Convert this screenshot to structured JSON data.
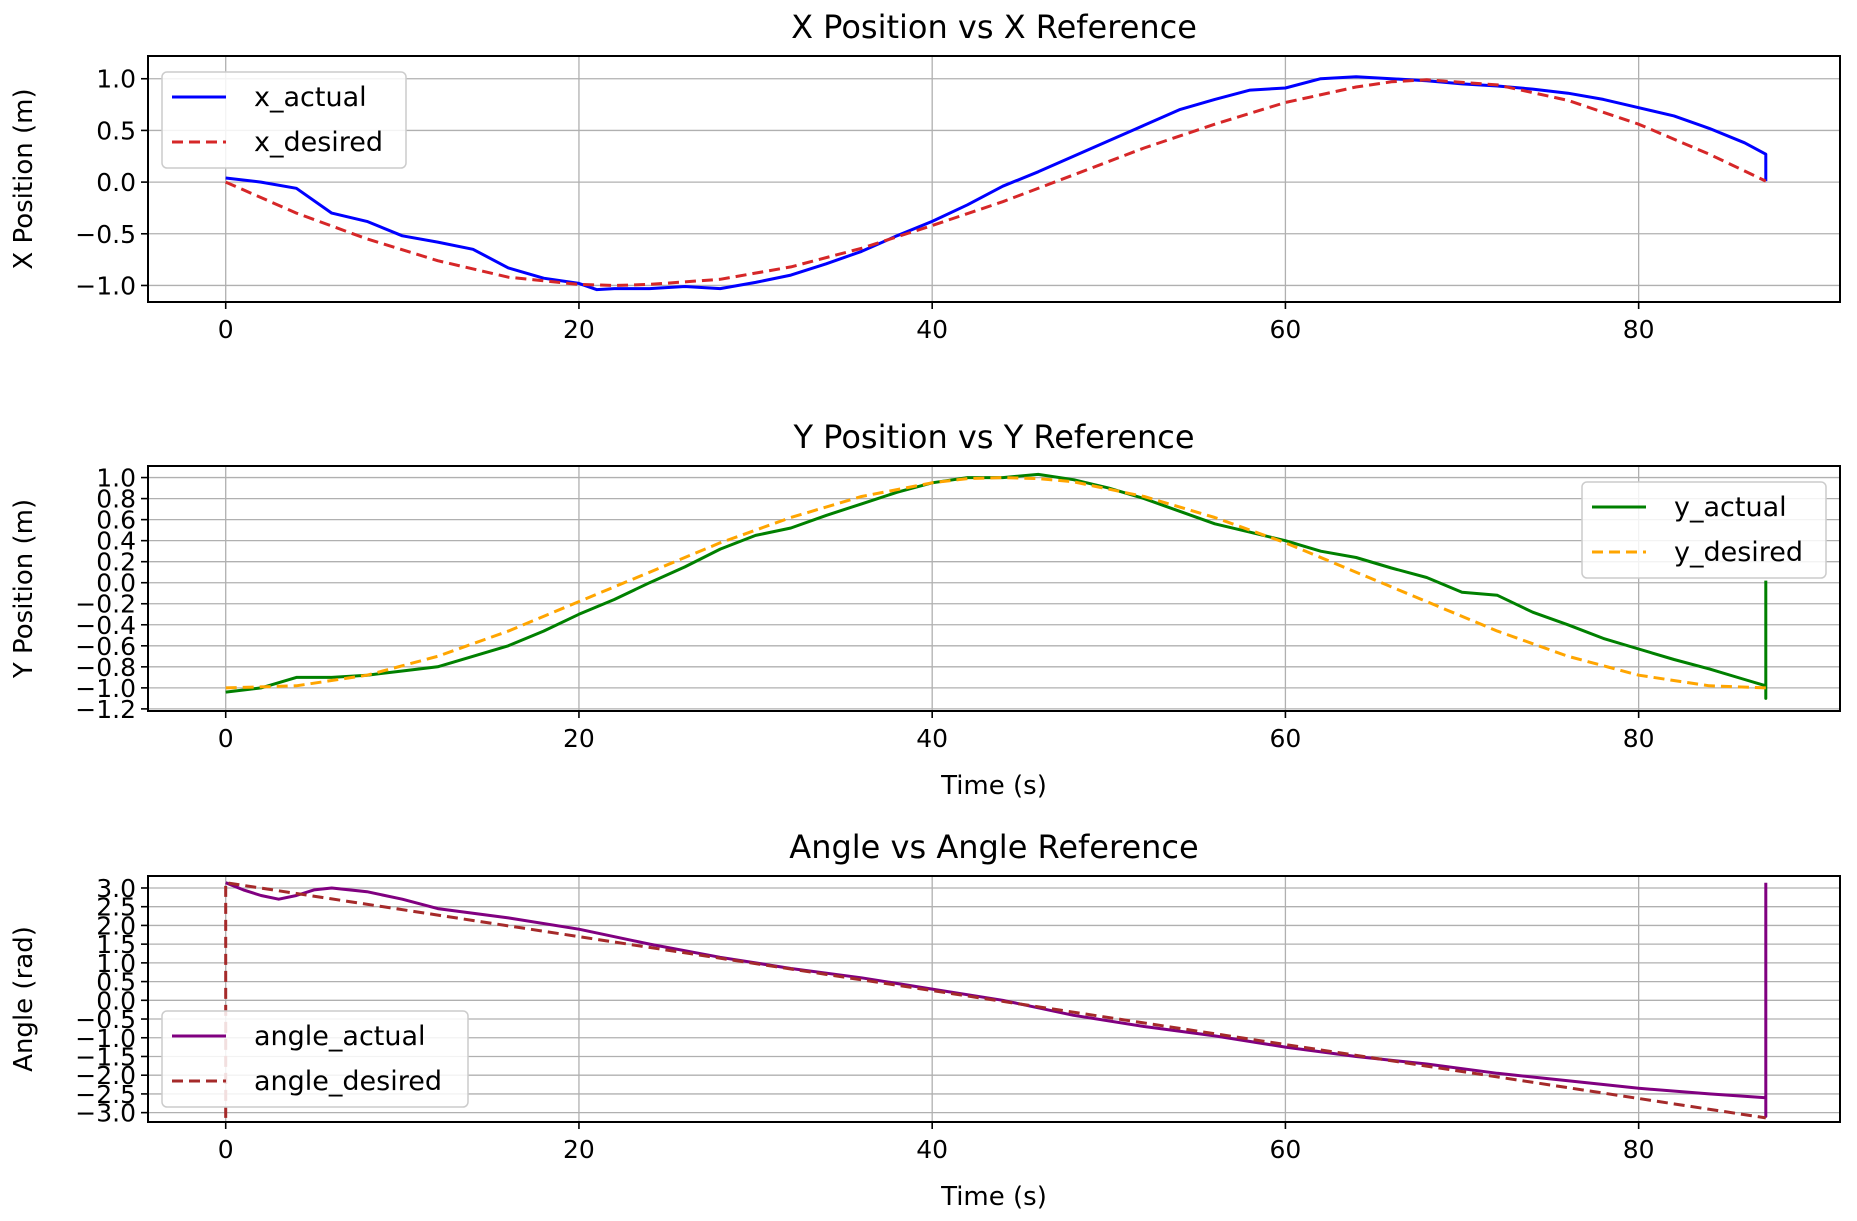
{
  "chart_data": [
    {
      "type": "line",
      "title": "X Position vs X Reference",
      "xlabel": "",
      "ylabel": "X Position (m)",
      "xlim": [
        -4.4,
        91.4
      ],
      "ylim": [
        -1.16,
        1.22
      ],
      "xticks": [
        0,
        20,
        40,
        60,
        80
      ],
      "yticks": [
        1.0,
        0.5,
        0.0,
        -0.5,
        -1.0
      ],
      "ytick_labels": [
        "1.0",
        "0.5",
        "0.0",
        "−0.5",
        "−1.0"
      ],
      "xtick_labels": [
        "0",
        "20",
        "40",
        "60",
        "80"
      ],
      "grid": true,
      "legend_position": "upper-left",
      "series": [
        {
          "name": "x_actual",
          "color": "#0000ff",
          "style": "solid",
          "x": [
            0,
            2,
            4,
            6,
            8,
            10,
            12,
            14,
            16,
            18,
            20,
            21,
            22,
            24,
            26,
            28,
            30,
            32,
            34,
            36,
            38,
            40,
            42,
            44,
            46,
            48,
            50,
            52,
            54,
            56,
            58,
            60,
            62,
            64,
            66,
            68,
            70,
            72,
            74,
            76,
            78,
            80,
            82,
            84,
            86,
            87.2,
            87.2
          ],
          "y": [
            0.04,
            0.0,
            -0.06,
            -0.3,
            -0.38,
            -0.52,
            -0.58,
            -0.65,
            -0.83,
            -0.93,
            -0.98,
            -1.04,
            -1.03,
            -1.03,
            -1.01,
            -1.03,
            -0.97,
            -0.9,
            -0.79,
            -0.67,
            -0.52,
            -0.38,
            -0.22,
            -0.04,
            0.1,
            0.25,
            0.4,
            0.55,
            0.7,
            0.8,
            0.89,
            0.91,
            1.0,
            1.02,
            1.0,
            0.98,
            0.95,
            0.93,
            0.9,
            0.86,
            0.8,
            0.72,
            0.64,
            0.52,
            0.38,
            0.27,
            0.01
          ]
        },
        {
          "name": "x_desired",
          "color": "#d62728",
          "style": "dashed",
          "x": [
            0,
            4,
            8,
            12,
            16,
            20,
            22,
            24,
            28,
            32,
            36,
            40,
            44,
            48,
            52,
            56,
            60,
            64,
            66,
            68,
            72,
            76,
            80,
            84,
            87.2
          ],
          "y": [
            0.0,
            -0.3,
            -0.55,
            -0.76,
            -0.92,
            -0.99,
            -1.0,
            -0.99,
            -0.94,
            -0.82,
            -0.64,
            -0.42,
            -0.19,
            0.07,
            0.33,
            0.56,
            0.77,
            0.92,
            0.97,
            0.99,
            0.94,
            0.79,
            0.56,
            0.27,
            0.01
          ]
        }
      ]
    },
    {
      "type": "line",
      "title": "Y Position vs Y Reference",
      "xlabel": "Time (s)",
      "ylabel": "Y Position (m)",
      "xlim": [
        -4.4,
        91.4
      ],
      "ylim": [
        -1.22,
        1.11
      ],
      "xticks": [
        0,
        20,
        40,
        60,
        80
      ],
      "yticks": [
        1.0,
        0.8,
        0.6,
        0.4,
        0.2,
        0.0,
        -0.2,
        -0.4,
        -0.6,
        -0.8,
        -1.0,
        -1.2
      ],
      "ytick_labels": [
        "1.0",
        "0.8",
        "0.6",
        "0.4",
        "0.2",
        "0.0",
        "−0.2",
        "−0.4",
        "−0.6",
        "−0.8",
        "−1.0",
        "−1.2"
      ],
      "xtick_labels": [
        "0",
        "20",
        "40",
        "60",
        "80"
      ],
      "grid": true,
      "legend_position": "upper-right",
      "series": [
        {
          "name": "y_actual",
          "color": "#008000",
          "style": "solid",
          "x": [
            0,
            2,
            4,
            6,
            8,
            10,
            12,
            14,
            16,
            18,
            20,
            22,
            24,
            26,
            28,
            30,
            32,
            34,
            36,
            38,
            40,
            42,
            44,
            46,
            48,
            50,
            52,
            54,
            56,
            58,
            60,
            62,
            64,
            66,
            68,
            70,
            72,
            74,
            76,
            78,
            80,
            82,
            84,
            86,
            87.2,
            87.2,
            87.2
          ],
          "y": [
            -1.04,
            -1.0,
            -0.9,
            -0.9,
            -0.88,
            -0.84,
            -0.8,
            -0.7,
            -0.6,
            -0.46,
            -0.3,
            -0.16,
            0.0,
            0.15,
            0.32,
            0.45,
            0.52,
            0.64,
            0.75,
            0.86,
            0.95,
            1.0,
            1.0,
            1.03,
            0.98,
            0.9,
            0.8,
            0.68,
            0.56,
            0.48,
            0.4,
            0.3,
            0.24,
            0.14,
            0.05,
            -0.09,
            -0.12,
            -0.28,
            -0.4,
            -0.53,
            -0.63,
            -0.73,
            -0.82,
            -0.92,
            -0.98,
            -1.1,
            0.02
          ]
        },
        {
          "name": "y_desired",
          "color": "#ffa500",
          "style": "dashed",
          "x": [
            0,
            4,
            8,
            12,
            16,
            20,
            24,
            28,
            32,
            36,
            40,
            42,
            44,
            46,
            48,
            52,
            56,
            60,
            64,
            68,
            72,
            76,
            80,
            84,
            87.2
          ],
          "y": [
            -1.0,
            -0.98,
            -0.88,
            -0.7,
            -0.46,
            -0.18,
            0.1,
            0.38,
            0.62,
            0.82,
            0.95,
            0.99,
            1.0,
            0.99,
            0.96,
            0.82,
            0.62,
            0.38,
            0.1,
            -0.18,
            -0.46,
            -0.7,
            -0.88,
            -0.98,
            -1.0
          ]
        }
      ]
    },
    {
      "type": "line",
      "title": "Angle vs Angle Reference",
      "xlabel": "Time (s)",
      "ylabel": "Angle (rad)",
      "xlim": [
        -4.4,
        91.4
      ],
      "ylim": [
        -3.25,
        3.32
      ],
      "xticks": [
        0,
        20,
        40,
        60,
        80
      ],
      "yticks": [
        3.0,
        2.5,
        2.0,
        1.5,
        1.0,
        0.5,
        0.0,
        -0.5,
        -1.0,
        -1.5,
        -2.0,
        -2.5,
        -3.0
      ],
      "ytick_labels": [
        "3.0",
        "2.5",
        "2.0",
        "1.5",
        "1.0",
        "0.5",
        "0.0",
        "−0.5",
        "−1.0",
        "−1.5",
        "−2.0",
        "−2.5",
        "−3.0"
      ],
      "xtick_labels": [
        "0",
        "20",
        "40",
        "60",
        "80"
      ],
      "grid": true,
      "legend_position": "lower-left",
      "series": [
        {
          "name": "angle_actual",
          "color": "#800080",
          "style": "solid",
          "x": [
            0,
            1,
            2,
            3,
            4,
            5,
            6,
            8,
            10,
            12,
            16,
            20,
            24,
            28,
            32,
            36,
            40,
            44,
            48,
            52,
            56,
            60,
            64,
            68,
            72,
            76,
            80,
            84,
            87.2,
            87.2,
            87.2
          ],
          "y": [
            3.14,
            2.95,
            2.8,
            2.7,
            2.8,
            2.95,
            3.0,
            2.9,
            2.7,
            2.45,
            2.2,
            1.9,
            1.5,
            1.15,
            0.85,
            0.6,
            0.3,
            0.0,
            -0.4,
            -0.7,
            -0.95,
            -1.25,
            -1.5,
            -1.7,
            -1.95,
            -2.15,
            -2.35,
            -2.5,
            -2.6,
            -3.1,
            3.14
          ]
        },
        {
          "name": "angle_desired",
          "color": "#a52a2a",
          "style": "dashed",
          "x": [
            0,
            0,
            87.2
          ],
          "y": [
            -3.14,
            3.14,
            -3.14
          ]
        }
      ]
    }
  ]
}
